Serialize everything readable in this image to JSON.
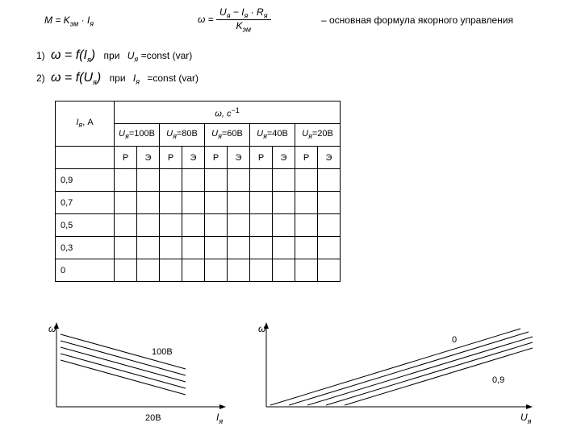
{
  "topFormula": {
    "M_left": "M = K",
    "M_sub": "эм",
    "M_mid": " · I",
    "M_sub2": "я",
    "omega": "ω = ",
    "numL": "U",
    "numSub": "я",
    "numMid": " − I",
    "numSub2": "я",
    "numMid2": " · R",
    "numSub3": "я",
    "denL": "K",
    "denSub": "эм",
    "desc": "– основная формула якорного управления"
  },
  "list": {
    "item1_no": "1)",
    "item1_om": "ω = f(I",
    "item1_sub": "я",
    "item1_cl": ")",
    "item1_pri": "при",
    "item1_Usub": "я",
    "item1_val": "=const (var)",
    "item2_no": "2)",
    "item2_om": "ω = f(U",
    "item2_sub": "я",
    "item2_cl": ")",
    "item2_pri": "при",
    "item2_IL": "I",
    "item2_Isub": "я",
    "item2_val": "=const (var)"
  },
  "table": {
    "rowLabel_sym": "I",
    "rowLabel_sub": "я",
    "rowLabel_A": ", A",
    "omega_sym": "ω, c",
    "omega_sup": "−1",
    "U_sym": "U",
    "U_sub": "я",
    "voltages": [
      "=100В",
      "=80В",
      "=60В",
      "=40В",
      "=20В"
    ],
    "subheaders": [
      "Р",
      "Э"
    ],
    "rows": [
      "0,9",
      "0,7",
      "0,5",
      "0,3",
      "0"
    ]
  },
  "graphs": {
    "left_axis": "ω",
    "left_label1": "100В",
    "left_label2": "20В",
    "left_x_sym": "I",
    "left_x_sub": "я",
    "right_axis": "ω",
    "right_label0": "0",
    "right_label1": "0,9",
    "right_x_sym": "U",
    "right_x_sub": "я"
  },
  "style": {
    "line_color": "#000000"
  }
}
